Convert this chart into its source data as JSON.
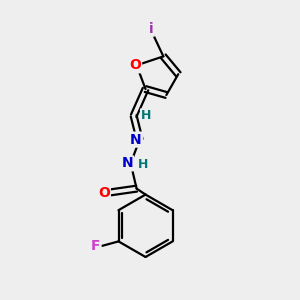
{
  "bg_color": "#eeeeee",
  "bond_color": "#000000",
  "atom_colors": {
    "O_furan": "#ff0000",
    "O_carbonyl": "#ff0000",
    "N": "#0000cc",
    "F": "#cc44cc",
    "I": "#9933aa",
    "H": "#007777",
    "C": "#000000"
  },
  "figsize": [
    3.0,
    3.0
  ],
  "dpi": 100
}
